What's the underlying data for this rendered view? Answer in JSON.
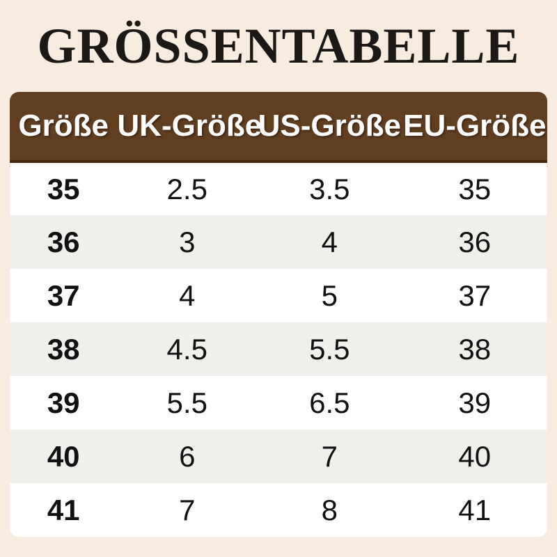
{
  "colors": {
    "page-bg": "#f7ecdf",
    "header-bg": "#613e20",
    "header-border": "#47280f",
    "header-text": "#ffffff",
    "row-bg": "#ffffff",
    "row-alt-bg": "#f0efec",
    "cell-text": "#111111",
    "title-text": "#1b1816"
  },
  "chart_data": {
    "type": "table",
    "title": "GRÖSSENTABELLE",
    "columns": [
      "Größe",
      "UK-Größe",
      "US-Größe",
      "EU-Größe"
    ],
    "rows": [
      [
        "35",
        "2.5",
        "3.5",
        "35"
      ],
      [
        "36",
        "3",
        "4",
        "36"
      ],
      [
        "37",
        "4",
        "5",
        "37"
      ],
      [
        "38",
        "4.5",
        "5.5",
        "38"
      ],
      [
        "39",
        "5.5",
        "6.5",
        "39"
      ],
      [
        "40",
        "6",
        "7",
        "40"
      ],
      [
        "41",
        "7",
        "8",
        "41"
      ]
    ]
  }
}
